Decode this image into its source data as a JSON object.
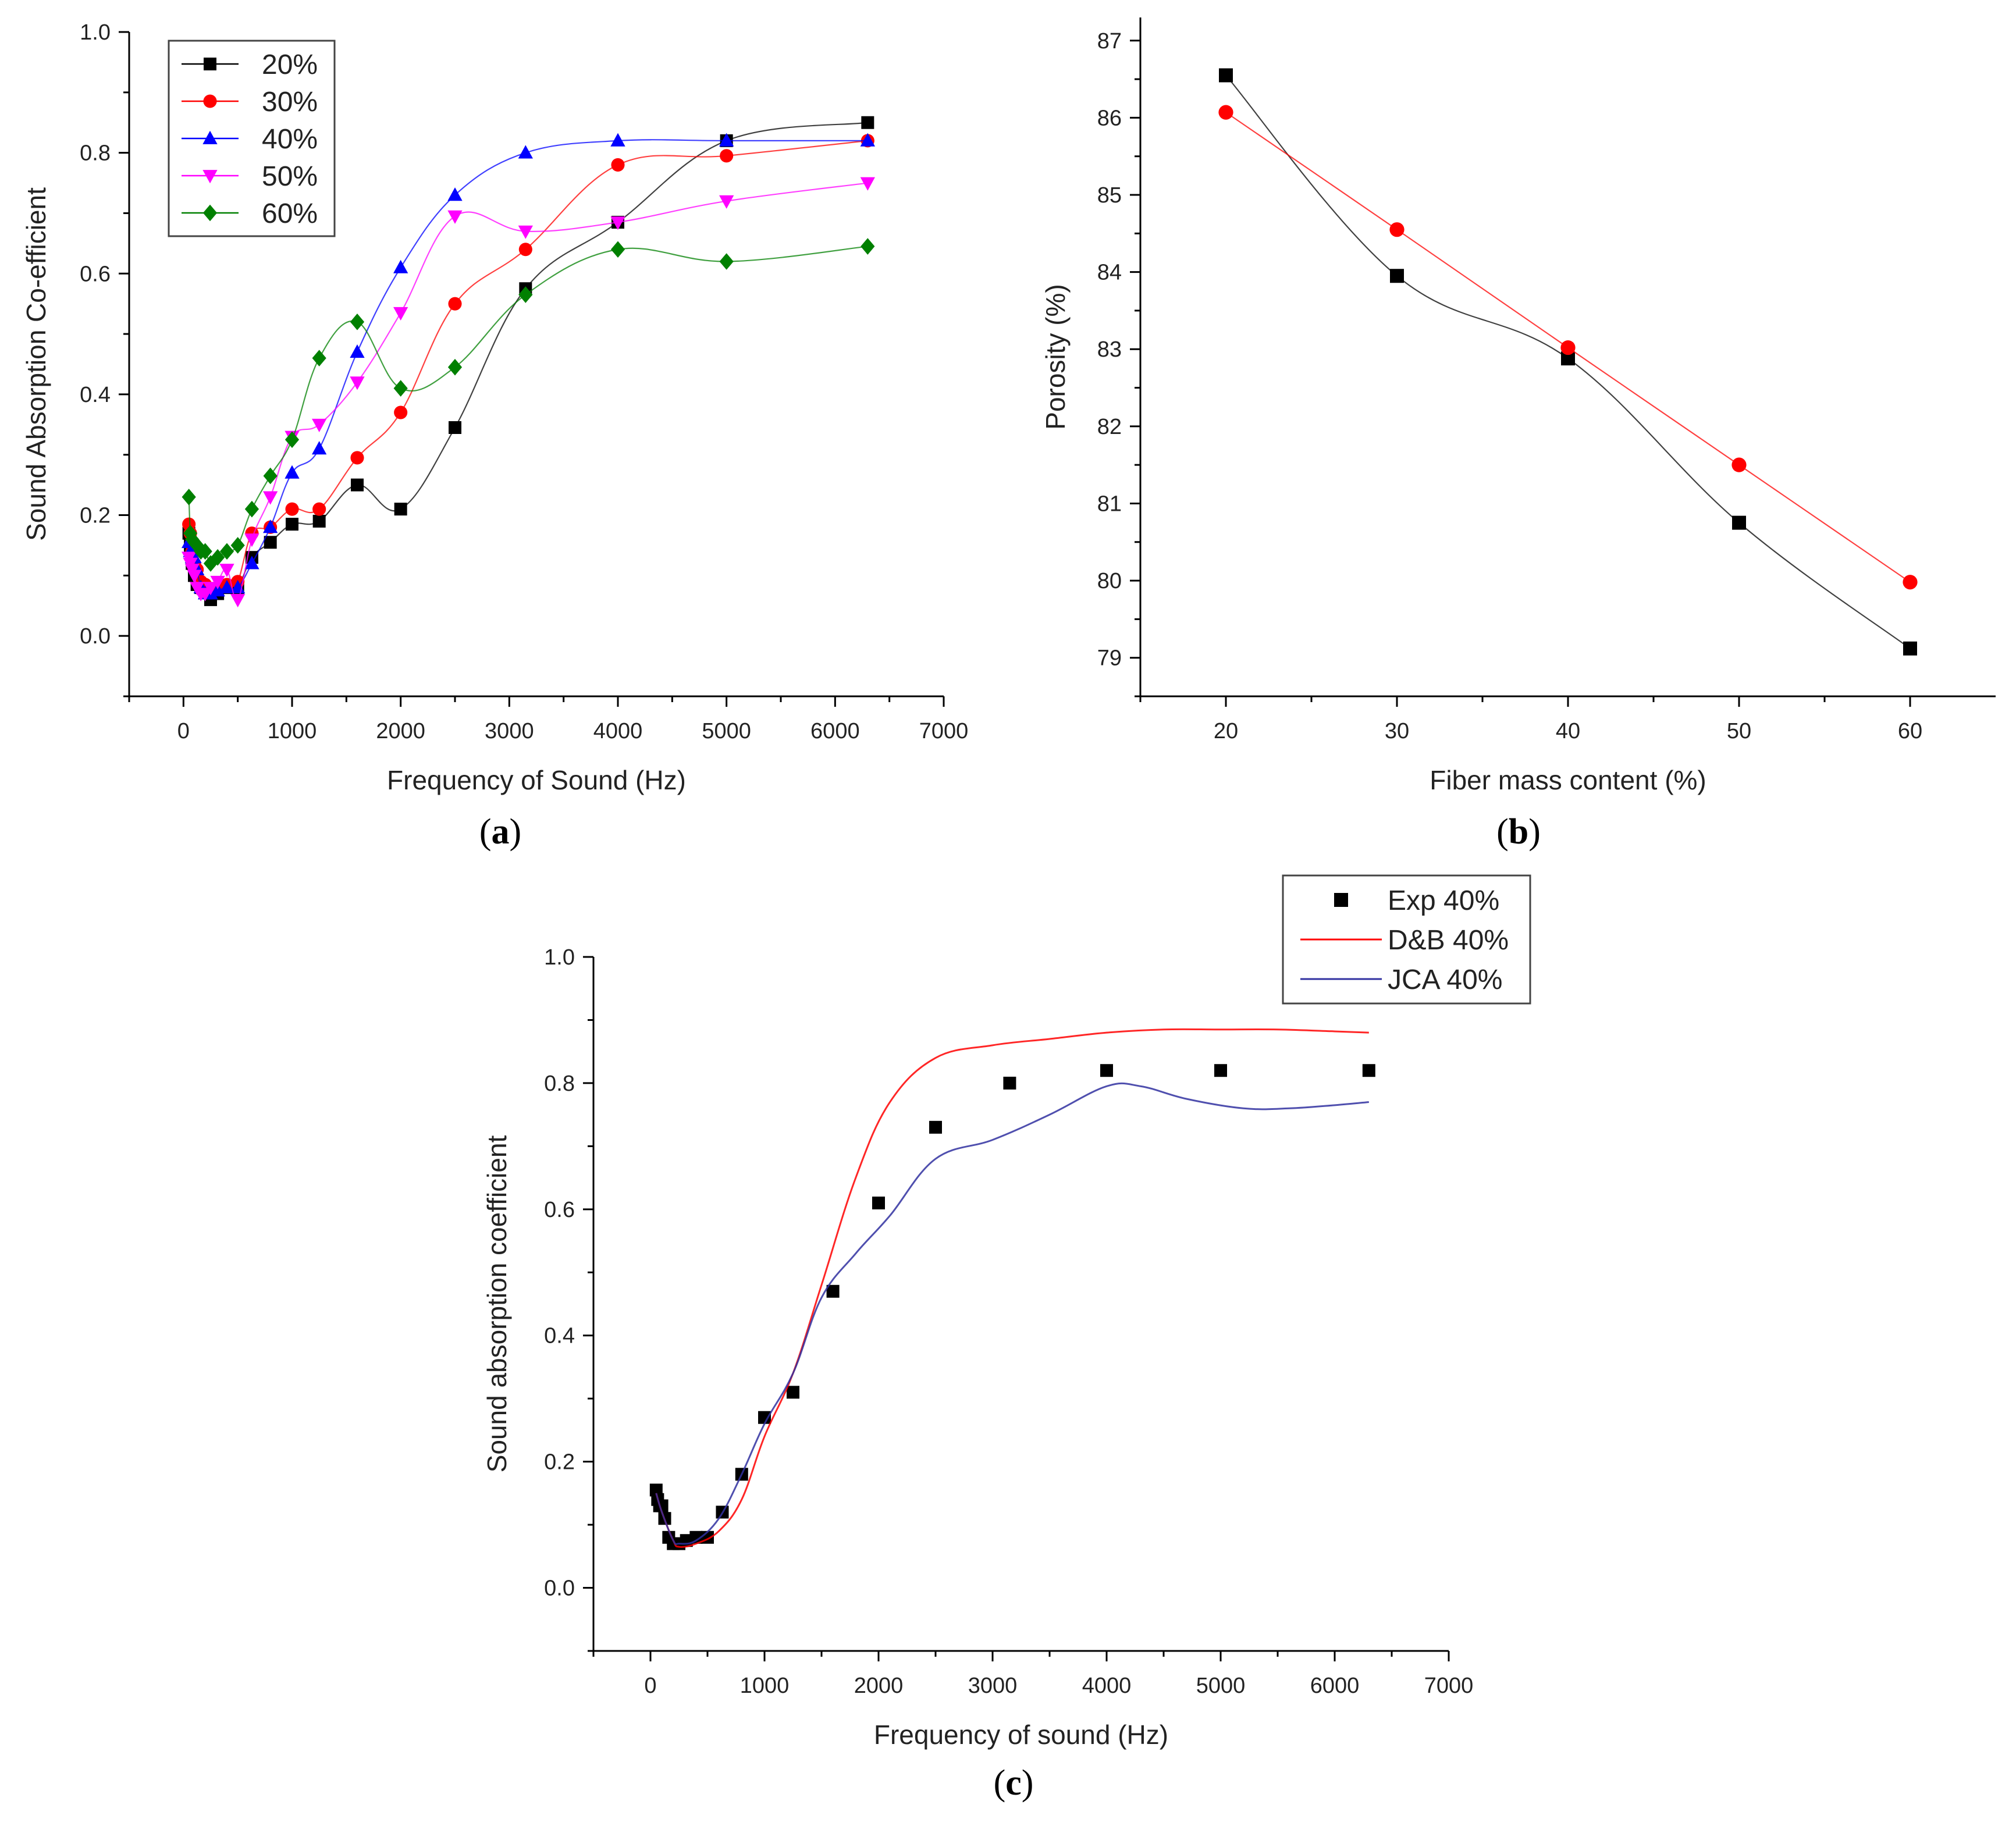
{
  "chart_data": [
    {
      "type": "line",
      "panel": "a",
      "caption_letter": "a",
      "xlabel": "Frequency of Sound (Hz)",
      "ylabel": "Sound Absorption Co-efficient",
      "xlim": [
        -500,
        7000
      ],
      "ylim": [
        -0.1,
        1.0
      ],
      "xticks": [
        0,
        1000,
        2000,
        3000,
        4000,
        5000,
        6000,
        7000
      ],
      "yticks": [
        0.0,
        0.2,
        0.4,
        0.6,
        0.8,
        1.0
      ],
      "ytick_labels": [
        "0.0",
        "0.2",
        "0.4",
        "0.6",
        "0.8",
        "1.0"
      ],
      "legend": "top-left",
      "grid": false,
      "x": [
        50,
        63,
        80,
        100,
        125,
        160,
        200,
        250,
        315,
        400,
        500,
        630,
        800,
        1000,
        1250,
        1600,
        2000,
        2500,
        3150,
        4000,
        5000,
        6300
      ],
      "series": [
        {
          "name": "20%",
          "marker": "square",
          "color": "#000000",
          "values": [
            0.17,
            0.15,
            0.12,
            0.1,
            0.085,
            0.08,
            0.075,
            0.06,
            0.07,
            0.08,
            0.08,
            0.13,
            0.155,
            0.185,
            0.19,
            0.25,
            0.21,
            0.345,
            0.575,
            0.685,
            0.82,
            0.85
          ]
        },
        {
          "name": "30%",
          "marker": "circle",
          "color": "#ff0000",
          "values": [
            0.185,
            0.17,
            0.14,
            0.12,
            0.11,
            0.09,
            0.085,
            0.075,
            0.08,
            0.085,
            0.09,
            0.17,
            0.18,
            0.21,
            0.21,
            0.295,
            0.37,
            0.55,
            0.64,
            0.78,
            0.795,
            0.82
          ]
        },
        {
          "name": "40%",
          "marker": "triangle-up",
          "color": "#0000ff",
          "values": [
            0.155,
            0.14,
            0.13,
            0.13,
            0.11,
            0.08,
            0.07,
            0.07,
            0.075,
            0.08,
            0.08,
            0.12,
            0.18,
            0.27,
            0.31,
            0.47,
            0.61,
            0.73,
            0.8,
            0.82,
            0.82,
            0.82
          ]
        },
        {
          "name": "50%",
          "marker": "triangle-down",
          "color": "#ff00ff",
          "values": [
            0.13,
            0.12,
            0.11,
            0.1,
            0.08,
            0.07,
            0.07,
            0.08,
            0.09,
            0.11,
            0.06,
            0.16,
            0.23,
            0.33,
            0.35,
            0.42,
            0.535,
            0.695,
            0.67,
            0.685,
            0.72,
            0.75
          ]
        },
        {
          "name": "60%",
          "marker": "diamond",
          "color": "#008000",
          "values": [
            0.23,
            0.17,
            0.16,
            0.155,
            0.15,
            0.14,
            0.14,
            0.12,
            0.13,
            0.14,
            0.15,
            0.21,
            0.265,
            0.325,
            0.46,
            0.52,
            0.41,
            0.445,
            0.565,
            0.64,
            0.62,
            0.645
          ]
        }
      ]
    },
    {
      "type": "line",
      "panel": "b",
      "caption_letter": "b",
      "xlabel": "Fiber mass content (%)",
      "ylabel": "Porosity (%)",
      "xlim": [
        15,
        65
      ],
      "ylim": [
        78.5,
        87.3
      ],
      "xticks": [
        20,
        30,
        40,
        50,
        60
      ],
      "yticks": [
        79,
        80,
        81,
        82,
        83,
        84,
        85,
        86,
        87
      ],
      "legend": "none",
      "grid": false,
      "x": [
        20,
        30,
        40,
        50,
        60
      ],
      "series": [
        {
          "marker": "square",
          "color": "#000000",
          "values": [
            86.55,
            83.95,
            82.88,
            80.75,
            79.12
          ]
        },
        {
          "marker": "circle",
          "color": "#ff0000",
          "values": [
            86.07,
            84.55,
            83.02,
            81.5,
            79.98
          ]
        }
      ]
    },
    {
      "type": "line",
      "panel": "c",
      "caption_letter": "c",
      "xlabel": "Frequency of sound (Hz)",
      "ylabel": "Sound absorption coefficient",
      "xlim": [
        -500,
        7000
      ],
      "ylim": [
        -0.1,
        1.0
      ],
      "xticks": [
        0,
        1000,
        2000,
        3000,
        4000,
        5000,
        6000,
        7000
      ],
      "yticks": [
        0.0,
        0.2,
        0.4,
        0.6,
        0.8,
        1.0
      ],
      "ytick_labels": [
        "0.0",
        "0.2",
        "0.4",
        "0.6",
        "0.8",
        "1.0"
      ],
      "legend": "top-right",
      "grid": false,
      "series": [
        {
          "name": "Exp 40%",
          "style": "markers",
          "marker": "square",
          "color": "#000000",
          "x": [
            50,
            63,
            80,
            100,
            125,
            160,
            200,
            250,
            315,
            400,
            500,
            630,
            800,
            1000,
            1250,
            1600,
            2000,
            2500,
            3150,
            4000,
            5000,
            6300
          ],
          "values": [
            0.155,
            0.14,
            0.13,
            0.13,
            0.11,
            0.08,
            0.07,
            0.07,
            0.075,
            0.08,
            0.08,
            0.12,
            0.18,
            0.27,
            0.31,
            0.47,
            0.61,
            0.73,
            0.8,
            0.82,
            0.82,
            0.82
          ]
        },
        {
          "name": "D&B 40%",
          "style": "line",
          "color": "#ff0000",
          "x": [
            50,
            100,
            200,
            250,
            400,
            600,
            800,
            1000,
            1250,
            1500,
            1800,
            2100,
            2500,
            3000,
            3500,
            4000,
            4500,
            5000,
            5500,
            6000,
            6300
          ],
          "values": [
            0.15,
            0.12,
            0.075,
            0.065,
            0.07,
            0.09,
            0.14,
            0.24,
            0.34,
            0.48,
            0.65,
            0.77,
            0.84,
            0.86,
            0.87,
            0.88,
            0.885,
            0.885,
            0.885,
            0.882,
            0.88
          ]
        },
        {
          "name": "JCA 40%",
          "style": "line",
          "color": "#3030a0",
          "x": [
            50,
            100,
            200,
            250,
            400,
            600,
            800,
            1000,
            1250,
            1500,
            1800,
            2100,
            2500,
            3000,
            3500,
            4000,
            4300,
            4700,
            5200,
            5600,
            6000,
            6300
          ],
          "values": [
            0.15,
            0.12,
            0.075,
            0.07,
            0.075,
            0.11,
            0.18,
            0.26,
            0.34,
            0.46,
            0.53,
            0.59,
            0.68,
            0.71,
            0.75,
            0.795,
            0.795,
            0.775,
            0.76,
            0.76,
            0.765,
            0.77
          ]
        }
      ]
    }
  ]
}
